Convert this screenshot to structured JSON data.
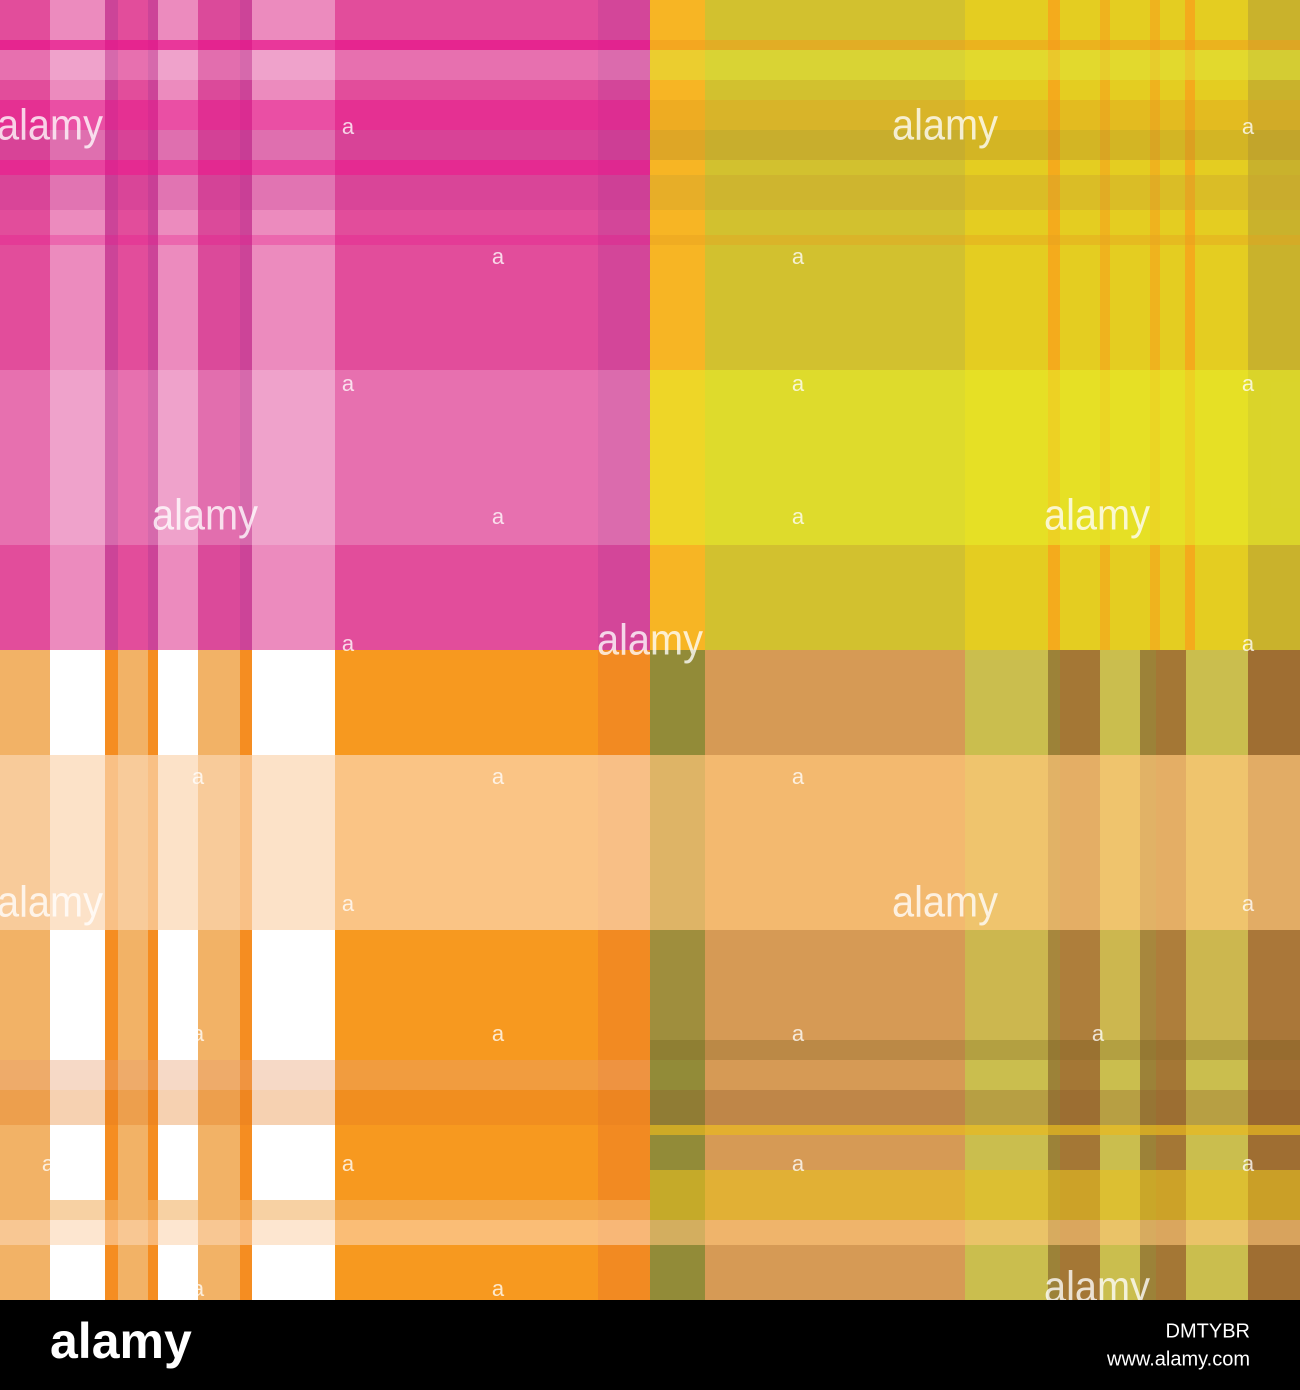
{
  "watermark": {
    "word": "alamy",
    "mark": "a"
  },
  "footer": {
    "logo": "alamy",
    "image_id": "DMTYBR",
    "url": "www.alamy.com"
  }
}
